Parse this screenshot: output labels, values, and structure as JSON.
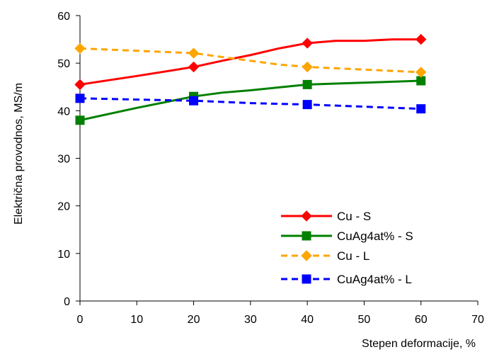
{
  "chart_data": {
    "type": "line",
    "title": "",
    "xlabel": "Stepen deformacije, %",
    "ylabel": "Električna provodnos, MS/m",
    "xlim": [
      0,
      70
    ],
    "ylim": [
      0,
      60
    ],
    "xticks": [
      0,
      10,
      20,
      30,
      40,
      50,
      60,
      70
    ],
    "yticks": [
      0,
      10,
      20,
      30,
      40,
      50,
      60
    ],
    "grid": false,
    "legend_position": "bottom-right",
    "series": [
      {
        "name": "Cu - S",
        "color": "#ff0000",
        "dashed": false,
        "marker": "diamond",
        "line_x": [
          0,
          10,
          20,
          25,
          30,
          35,
          40,
          45,
          50,
          55,
          60
        ],
        "line_y": [
          45.5,
          47.3,
          49.2,
          50.5,
          51.7,
          53.1,
          54.2,
          54.7,
          54.7,
          55.0,
          55.0
        ],
        "x": [
          0,
          20,
          40,
          60
        ],
        "y": [
          45.5,
          49.2,
          54.2,
          55.0
        ]
      },
      {
        "name": "CuAg4at% - S",
        "color": "#008000",
        "dashed": false,
        "marker": "square",
        "line_x": [
          0,
          10,
          20,
          25,
          30,
          35,
          40,
          45,
          50,
          55,
          60
        ],
        "line_y": [
          38.0,
          40.6,
          43.0,
          43.8,
          44.3,
          44.9,
          45.5,
          45.7,
          45.9,
          46.1,
          46.3
        ],
        "x": [
          0,
          20,
          40,
          60
        ],
        "y": [
          38.0,
          43.0,
          45.5,
          46.3
        ]
      },
      {
        "name": "Cu - L",
        "color": "#ffa500",
        "dashed": true,
        "marker": "diamond",
        "line_x": [
          0,
          20,
          25,
          30,
          35,
          40,
          60
        ],
        "line_y": [
          53.1,
          52.1,
          51.3,
          50.5,
          49.7,
          49.2,
          48.1
        ],
        "x": [
          0,
          20,
          40,
          60
        ],
        "y": [
          53.1,
          52.1,
          49.2,
          48.1
        ]
      },
      {
        "name": "CuAg4at% - L",
        "color": "#0000ff",
        "dashed": true,
        "marker": "square",
        "line_x": [
          0,
          20,
          30,
          40,
          60
        ],
        "line_y": [
          42.6,
          42.1,
          41.6,
          41.3,
          40.4
        ],
        "x": [
          0,
          20,
          40,
          60
        ],
        "y": [
          42.6,
          42.1,
          41.3,
          40.4
        ]
      }
    ]
  }
}
